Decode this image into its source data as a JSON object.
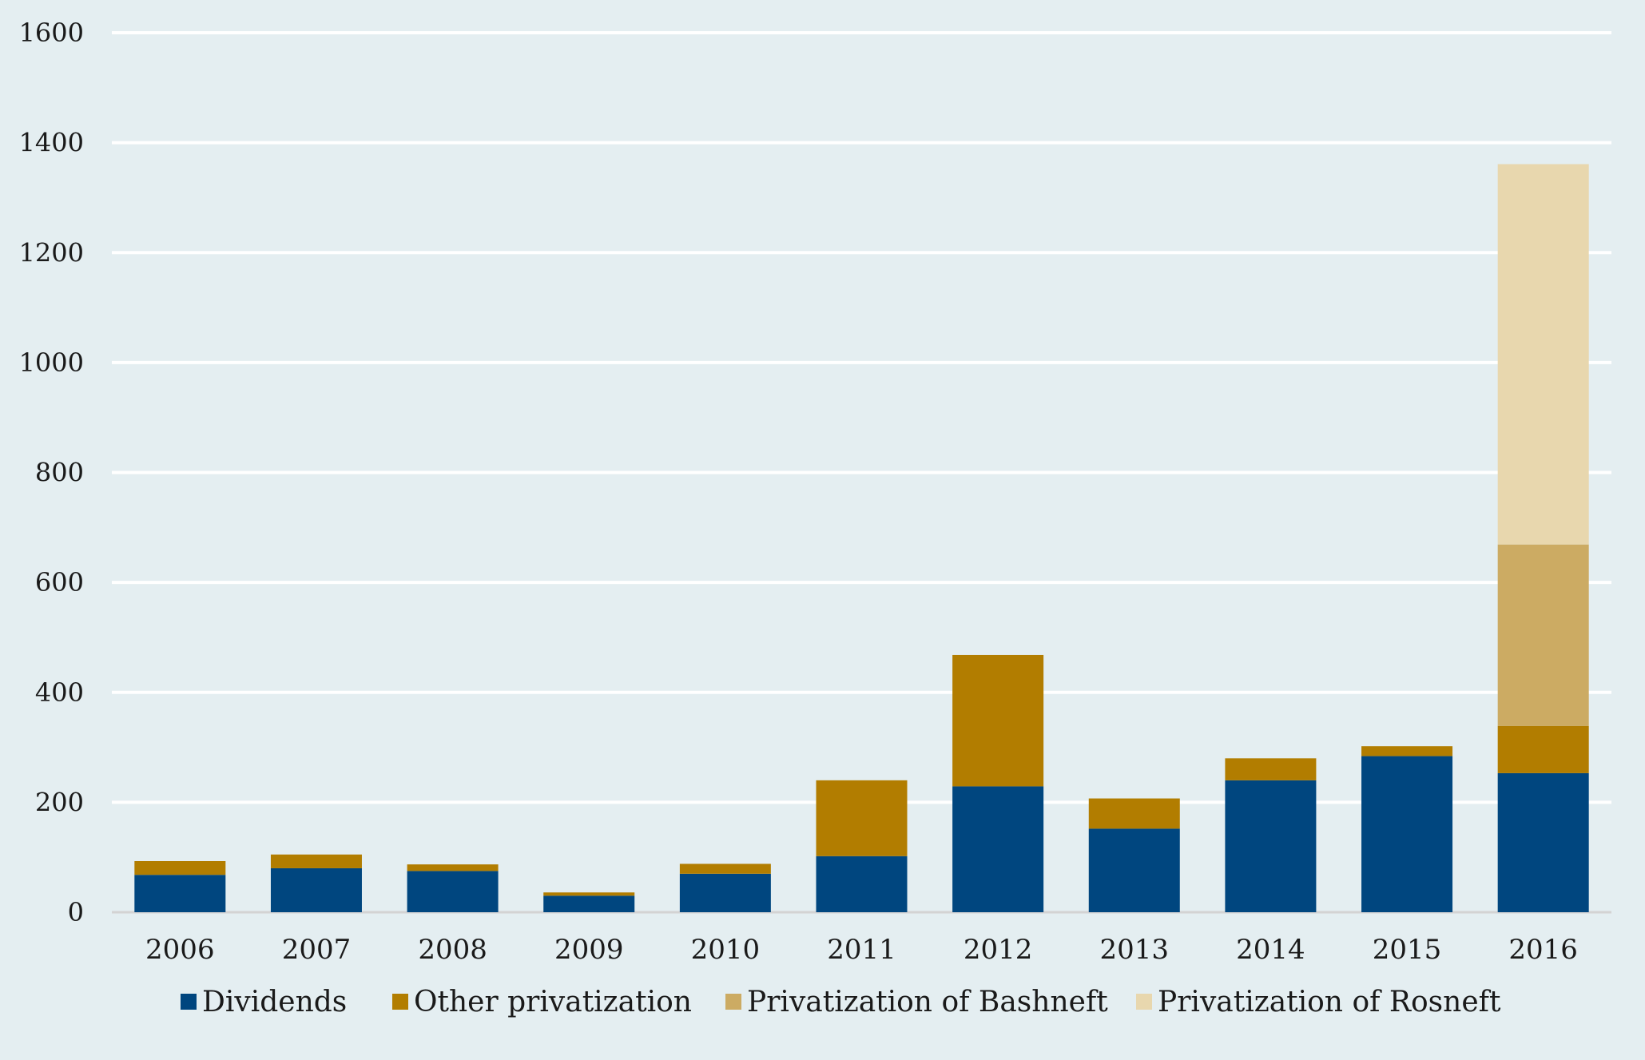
{
  "chart_data": {
    "type": "bar",
    "stacked": true,
    "categories": [
      "2006",
      "2007",
      "2008",
      "2009",
      "2010",
      "2011",
      "2012",
      "2013",
      "2014",
      "2015",
      "2016"
    ],
    "series": [
      {
        "name": "Dividends",
        "color": "#00467f",
        "values": [
          68,
          80,
          75,
          30,
          70,
          102,
          229,
          152,
          240,
          284,
          253
        ]
      },
      {
        "name": "Other privatization",
        "color": "#b27d00",
        "values": [
          25,
          25,
          12,
          6,
          18,
          138,
          239,
          55,
          40,
          18,
          86
        ]
      },
      {
        "name": "Privatization of Bashneft",
        "color": "#ccab63",
        "values": [
          0,
          0,
          0,
          0,
          0,
          0,
          0,
          0,
          0,
          0,
          330
        ]
      },
      {
        "name": "Privatization of Rosneft",
        "color": "#e8d7ae",
        "values": [
          0,
          0,
          0,
          0,
          0,
          0,
          0,
          0,
          0,
          0,
          692
        ]
      }
    ],
    "ylim": [
      0,
      1600
    ],
    "yticks": [
      "0",
      "200",
      "400",
      "600",
      "800",
      "1000",
      "1200",
      "1400",
      "1600"
    ],
    "grid": true,
    "gridColor": "#ffffff",
    "legend_position": "bottom",
    "title": "",
    "xlabel": "",
    "ylabel": ""
  }
}
